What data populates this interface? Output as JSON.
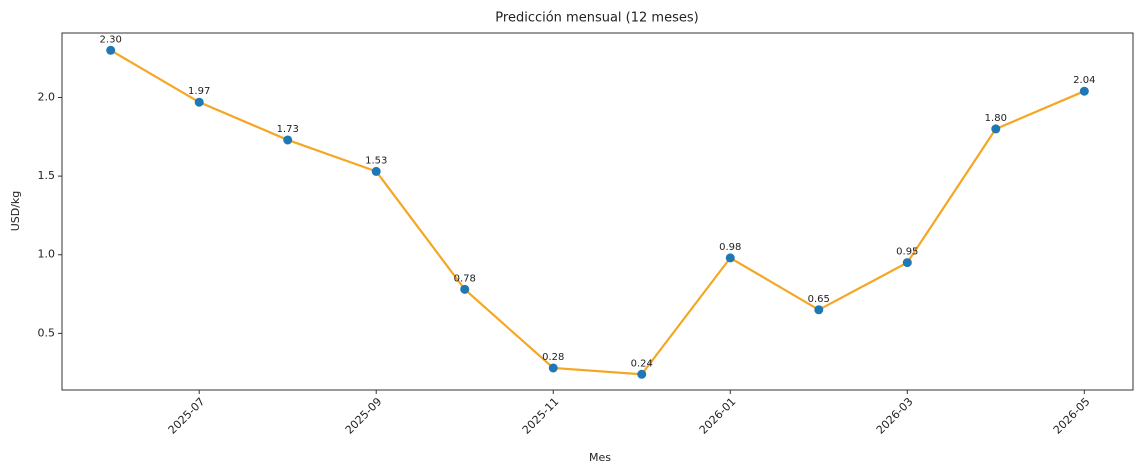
{
  "chart_data": {
    "type": "line",
    "title": "Predicción mensual (12 meses)",
    "x_label": "Mes",
    "y_label": "USD/kg",
    "x": [
      "2025-06",
      "2025-07",
      "2025-08",
      "2025-09",
      "2025-10",
      "2025-11",
      "2025-12",
      "2026-01",
      "2026-02",
      "2026-03",
      "2026-04",
      "2026-05"
    ],
    "xticks": [
      "2025-07",
      "2025-09",
      "2025-11",
      "2026-01",
      "2026-03",
      "2026-05"
    ],
    "series": [
      {
        "name": "Predicción",
        "color": "#f5a623",
        "marker_color": "#1f77b4",
        "values": [
          2.3,
          1.97,
          1.73,
          1.53,
          0.78,
          0.28,
          0.24,
          0.98,
          0.65,
          0.95,
          1.8,
          2.04
        ],
        "value_labels": [
          "2.30",
          "1.97",
          "1.73",
          "1.53",
          "0.78",
          "0.28",
          "0.24",
          "0.98",
          "0.65",
          "0.95",
          "1.80",
          "2.04"
        ]
      }
    ],
    "ylim": [
      0.14,
      2.41
    ],
    "yticks": [
      0.5,
      {
        "value": 1,
        "label": "1.0"
      },
      1.5,
      {
        "value": 2,
        "label": "2.0"
      }
    ],
    "grid": false
  }
}
